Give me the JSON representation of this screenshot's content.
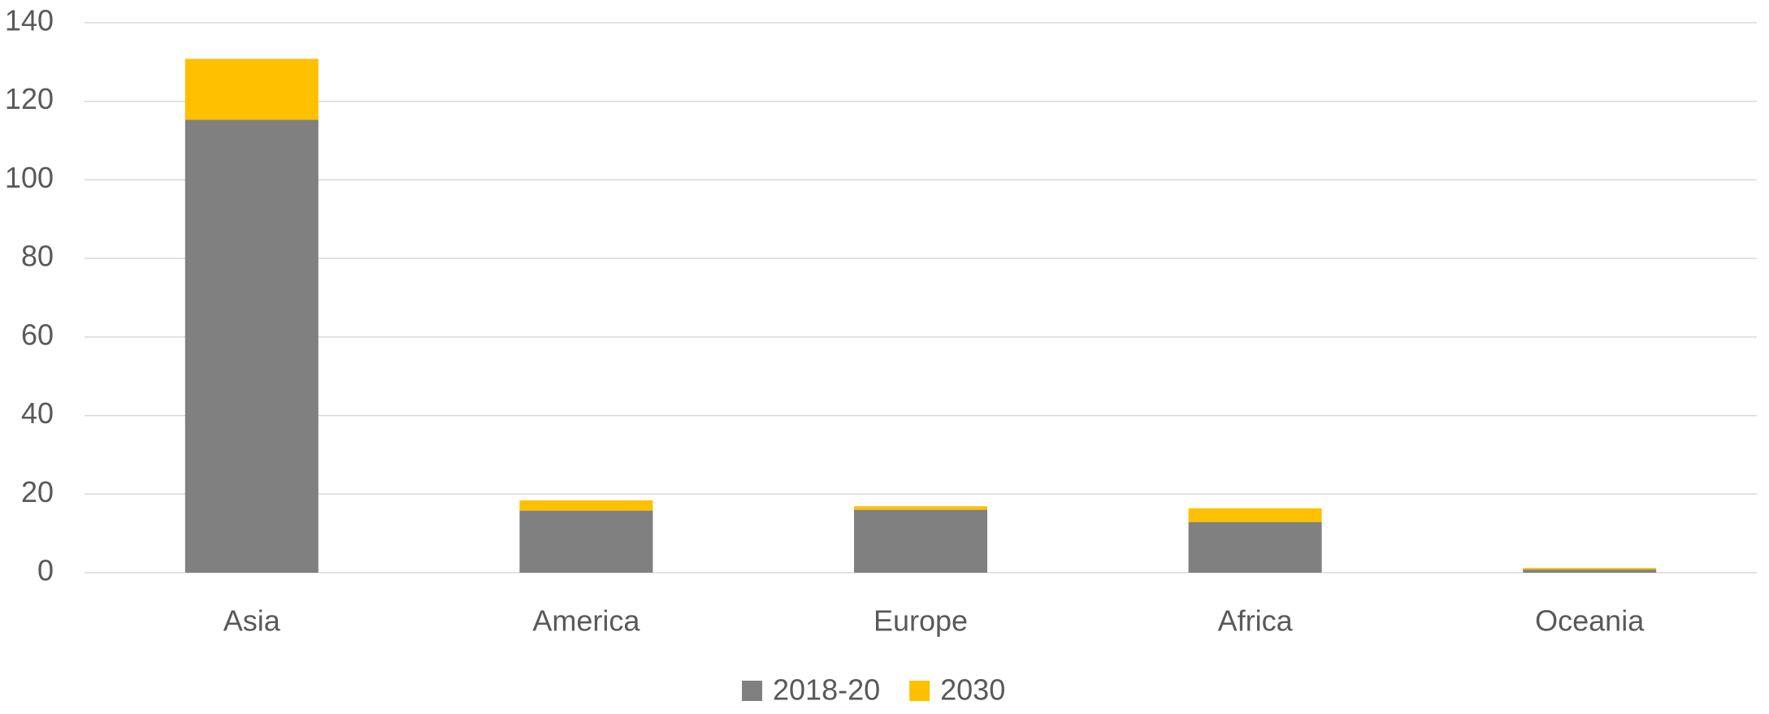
{
  "chart_data": {
    "type": "stacked_bar",
    "categories": [
      "Asia",
      "America",
      "Europe",
      "Africa",
      "Oceania"
    ],
    "series": [
      {
        "name": "2018-20",
        "color": "#808080",
        "values": [
          115.3,
          15.8,
          16.0,
          12.9,
          0.8
        ]
      },
      {
        "name": "2030",
        "color": "#ffc000",
        "values": [
          15.5,
          2.6,
          0.9,
          3.5,
          0.4
        ]
      }
    ],
    "ylim": [
      0,
      140
    ],
    "yticks": [
      0,
      20,
      40,
      60,
      80,
      100,
      120,
      140
    ],
    "grid": true,
    "legend": "bottom"
  }
}
